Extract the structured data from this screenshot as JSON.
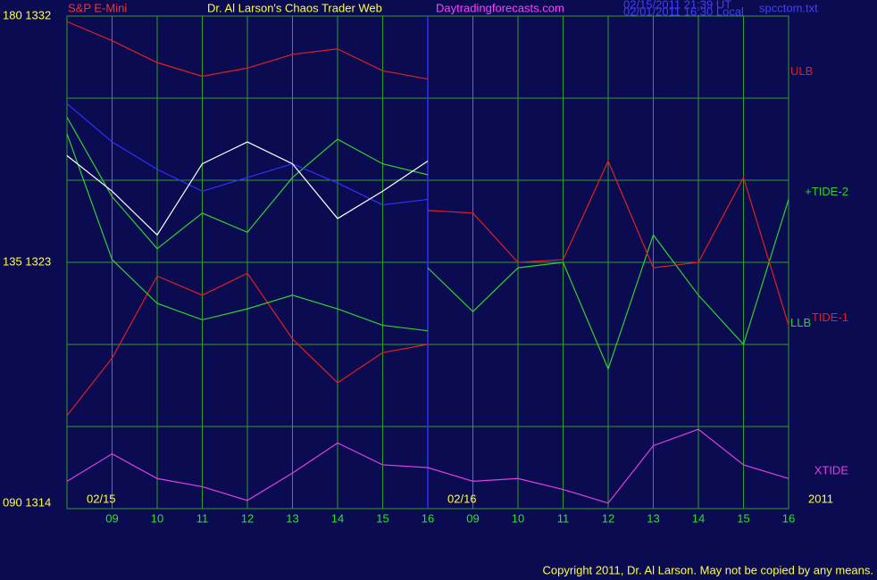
{
  "chart_data": {
    "type": "line",
    "symbol": "S&P E-Mini",
    "title": "Dr. Al Larson's Chaos Trader Web",
    "site": "Daytradingforecasts.com",
    "timestamps": [
      "02/15/2011 21:39 UT",
      "02/01/2011 16:30 Local"
    ],
    "file": "spcctom.txt",
    "dates": [
      {
        "value": 0,
        "label": "02/15"
      },
      {
        "value": 8,
        "label": "02/16"
      }
    ],
    "year": "2011",
    "copyright": "Copyright 2011, Dr. Al Larson. May not be copied by any means.",
    "x": [
      0,
      1,
      2,
      3,
      4,
      5,
      6,
      7,
      8,
      9,
      10,
      11,
      12,
      13,
      14,
      15,
      16
    ],
    "xlim": [
      0,
      16
    ],
    "xticks": [
      {
        "value": 1,
        "label": "09"
      },
      {
        "value": 2,
        "label": "10"
      },
      {
        "value": 3,
        "label": "11"
      },
      {
        "value": 4,
        "label": "12"
      },
      {
        "value": 5,
        "label": "13"
      },
      {
        "value": 6,
        "label": "14"
      },
      {
        "value": 7,
        "label": "15"
      },
      {
        "value": 8,
        "label": "16"
      },
      {
        "value": 9,
        "label": "09"
      },
      {
        "value": 10,
        "label": "10"
      },
      {
        "value": 11,
        "label": "11"
      },
      {
        "value": 12,
        "label": "12"
      },
      {
        "value": 13,
        "label": "13"
      },
      {
        "value": 14,
        "label": "14"
      },
      {
        "value": 15,
        "label": "15"
      },
      {
        "value": 16,
        "label": "16"
      }
    ],
    "day_divider": 8,
    "ylim": [
      1314,
      1332
    ],
    "yticks": [
      {
        "value": 1332,
        "label": "180 1332"
      },
      {
        "value": 1323,
        "label": "135 1323"
      },
      {
        "value": 1314,
        "label": "090 1314"
      }
    ],
    "ygrid": [
      1317,
      1320,
      1323,
      1326,
      1329
    ],
    "grid": true,
    "series": [
      {
        "name": "ULB",
        "color": "#e02020",
        "values": [
          1331.8,
          1331.1,
          1330.3,
          1329.8,
          1330.1,
          1330.6,
          1330.8,
          1330.0,
          1329.7,
          null,
          null,
          null,
          null,
          null,
          null,
          null,
          null
        ]
      },
      {
        "color": "#e02020",
        "values": [
          1317.4,
          1319.5,
          1322.5,
          1321.8,
          1322.6,
          1320.2,
          1318.6,
          1319.7,
          1320.0,
          null,
          null,
          null,
          null,
          null,
          null,
          null,
          null
        ]
      },
      {
        "color": "#30d030",
        "values": [
          1328.3,
          1325.4,
          1323.5,
          1324.8,
          1324.1,
          1326.1,
          1327.5,
          1326.6,
          1326.2,
          null,
          null,
          null,
          null,
          null,
          null,
          null,
          null
        ]
      },
      {
        "name": "LLB",
        "color": "#30d030",
        "values": [
          1327.7,
          1323.1,
          1321.5,
          1320.9,
          1321.3,
          1321.8,
          1321.3,
          1320.7,
          1320.5,
          null,
          null,
          null,
          null,
          null,
          null,
          null,
          null
        ]
      },
      {
        "color": "#3030ff",
        "values": [
          1328.8,
          1327.4,
          1326.4,
          1325.6,
          1326.1,
          1326.6,
          1325.9,
          1325.1,
          1325.3,
          null,
          null,
          null,
          null,
          null,
          null,
          null,
          null
        ]
      },
      {
        "color": "#ffffff",
        "values": [
          1326.9,
          1325.6,
          1324.0,
          1326.6,
          1327.4,
          1326.6,
          1324.6,
          1325.6,
          1326.7,
          null,
          null,
          null,
          null,
          null,
          null,
          null,
          null
        ]
      },
      {
        "name": "+TIDE-2",
        "color": "#30d030",
        "values": [
          null,
          null,
          null,
          null,
          null,
          null,
          null,
          null,
          1322.8,
          1321.2,
          1322.8,
          1323.0,
          1319.1,
          1324.0,
          1321.8,
          1320.0,
          1325.3
        ]
      },
      {
        "name": "TIDE-1",
        "color": "#e02020",
        "values": [
          null,
          null,
          null,
          null,
          null,
          null,
          null,
          null,
          1324.9,
          1324.8,
          1323.0,
          1323.1,
          1326.7,
          1322.8,
          1323.0,
          1326.1,
          1320.7
        ]
      },
      {
        "name": "XTIDE",
        "color": "#e040e0",
        "values": [
          1315.0,
          1316.0,
          1315.1,
          1314.8,
          1314.3,
          1315.3,
          1316.4,
          1315.6,
          1315.5,
          1315.0,
          1315.1,
          1314.7,
          1314.2,
          1316.3,
          1316.9,
          1315.6,
          1315.1
        ]
      }
    ]
  }
}
